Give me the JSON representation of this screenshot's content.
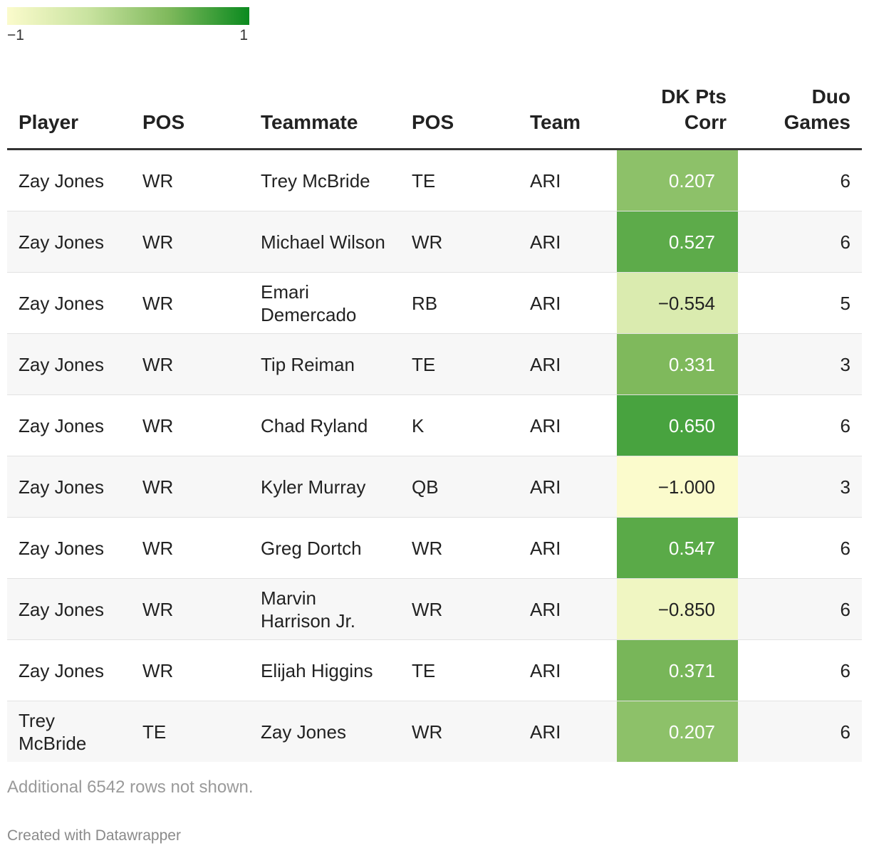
{
  "legend": {
    "min_label": "−1",
    "max_label": "1",
    "min_value": -1,
    "max_value": 1
  },
  "colors": {
    "scale": [
      "#fbfbcc",
      "#c9e3a0",
      "#7fb95c",
      "#0b8a1f"
    ],
    "text_light": "#ffffff",
    "text_dark": "#222222"
  },
  "chart_data": {
    "type": "table",
    "columns": [
      "Player",
      "POS",
      "Teammate",
      "POS",
      "Team",
      "DK Pts Corr",
      "Duo Games"
    ],
    "rows": [
      [
        "Zay Jones",
        "WR",
        "Trey McBride",
        "TE",
        "ARI",
        "0.207",
        6
      ],
      [
        "Zay Jones",
        "WR",
        "Michael Wilson",
        "WR",
        "ARI",
        "0.527",
        6
      ],
      [
        "Zay Jones",
        "WR",
        "Emari Demercado",
        "RB",
        "ARI",
        "−0.554",
        5
      ],
      [
        "Zay Jones",
        "WR",
        "Tip Reiman",
        "TE",
        "ARI",
        "0.331",
        3
      ],
      [
        "Zay Jones",
        "WR",
        "Chad Ryland",
        "K",
        "ARI",
        "0.650",
        6
      ],
      [
        "Zay Jones",
        "WR",
        "Kyler Murray",
        "QB",
        "ARI",
        "−1.000",
        3
      ],
      [
        "Zay Jones",
        "WR",
        "Greg Dortch",
        "WR",
        "ARI",
        "0.547",
        6
      ],
      [
        "Zay Jones",
        "WR",
        "Marvin Harrison Jr.",
        "WR",
        "ARI",
        "−0.850",
        6
      ],
      [
        "Zay Jones",
        "WR",
        "Elijah Higgins",
        "TE",
        "ARI",
        "0.371",
        6
      ],
      [
        "Trey McBride",
        "TE",
        "Zay Jones",
        "WR",
        "ARI",
        "0.207",
        6
      ]
    ],
    "corr_values": [
      0.207,
      0.527,
      -0.554,
      0.331,
      0.65,
      -1.0,
      0.547,
      -0.85,
      0.371,
      0.207
    ],
    "color_scale_domain": [
      -1,
      1
    ]
  },
  "notes": "Additional 6542 rows not shown.",
  "credit": "Created with Datawrapper"
}
